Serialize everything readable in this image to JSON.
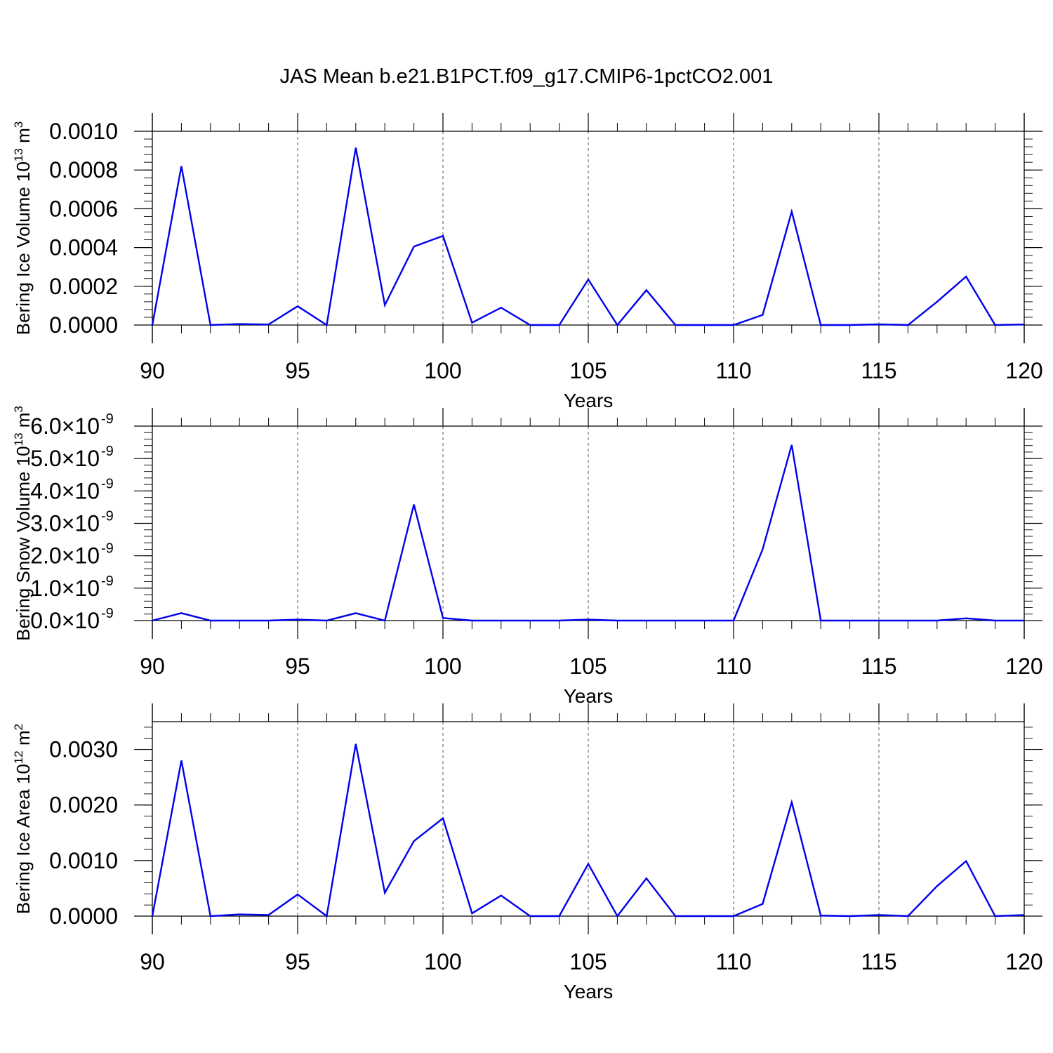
{
  "title": "JAS Mean b.e21.B1PCT.f09_g17.CMIP6-1pctCO2.001",
  "colors": {
    "line": "#0000ee",
    "axis": "#000000",
    "grid": "#555555"
  },
  "chart_data": [
    {
      "type": "line",
      "ylabel": "Bering Ice Volume 10",
      "ylabel_sup": "13",
      "ylabel_unit": " m",
      "ylabel_unit_sup": "3",
      "xlabel": "Years",
      "xlim": [
        90,
        120
      ],
      "ylim": [
        0,
        0.001
      ],
      "xticks": [
        90,
        95,
        100,
        105,
        110,
        115,
        120
      ],
      "yticks": [
        0,
        0.0002,
        0.0004,
        0.0006,
        0.0008,
        0.001
      ],
      "ytick_labels": [
        "0.0000",
        "0.0002",
        "0.0004",
        "0.0006",
        "0.0008",
        "0.0010"
      ],
      "grid": "vertical dashed at major x ticks",
      "x": [
        90,
        91,
        92,
        93,
        94,
        95,
        96,
        97,
        98,
        99,
        100,
        101,
        102,
        103,
        104,
        105,
        106,
        107,
        108,
        109,
        110,
        111,
        112,
        113,
        114,
        115,
        116,
        117,
        118,
        119,
        120
      ],
      "values": [
        0.0,
        0.00082,
        0.0,
        5e-06,
        3e-06,
        9.7e-05,
        0.0,
        0.000915,
        0.000103,
        0.000405,
        0.00046,
        1.2e-05,
        9e-05,
        0.0,
        0.0,
        0.000235,
        0.0,
        0.00018,
        0.0,
        0.0,
        0.0,
        5.2e-05,
        0.000585,
        0.0,
        0.0,
        4e-06,
        0.0,
        0.00012,
        0.00025,
        0.0,
        3e-06
      ]
    },
    {
      "type": "line",
      "ylabel": "Bering Snow Volume 10",
      "ylabel_sup": "13",
      "ylabel_unit": " m",
      "ylabel_unit_sup": "3",
      "xlabel": "Years",
      "xlim": [
        90,
        120
      ],
      "ylim": [
        0,
        6e-09
      ],
      "xticks": [
        90,
        95,
        100,
        105,
        110,
        115,
        120
      ],
      "yticks": [
        0,
        1e-09,
        2e-09,
        3e-09,
        4e-09,
        5e-09,
        6e-09
      ],
      "ytick_labels": [
        "0.0×10",
        "1.0×10",
        "2.0×10",
        "3.0×10",
        "4.0×10",
        "5.0×10",
        "6.0×10"
      ],
      "ytick_exponent": "-9",
      "grid": "vertical dashed at major x ticks",
      "x": [
        90,
        91,
        92,
        93,
        94,
        95,
        96,
        97,
        98,
        99,
        100,
        101,
        102,
        103,
        104,
        105,
        106,
        107,
        108,
        109,
        110,
        111,
        112,
        113,
        114,
        115,
        116,
        117,
        118,
        119,
        120
      ],
      "values": [
        0.0,
        2.3e-10,
        0.0,
        0.0,
        0.0,
        3e-11,
        0.0,
        2.3e-10,
        0.0,
        3.58e-09,
        8e-11,
        0.0,
        0.0,
        0.0,
        0.0,
        3e-11,
        0.0,
        0.0,
        0.0,
        0.0,
        0.0,
        2.2e-09,
        5.42e-09,
        0.0,
        0.0,
        0.0,
        0.0,
        0.0,
        7e-11,
        0.0,
        0.0
      ]
    },
    {
      "type": "line",
      "ylabel": "Bering Ice Area 10",
      "ylabel_sup": "12",
      "ylabel_unit": " m",
      "ylabel_unit_sup": "2",
      "xlabel": "Years",
      "xlim": [
        90,
        120
      ],
      "ylim": [
        0,
        0.0035
      ],
      "xticks": [
        90,
        95,
        100,
        105,
        110,
        115,
        120
      ],
      "yticks": [
        0,
        0.001,
        0.002,
        0.003
      ],
      "ytick_labels": [
        "0.0000",
        "0.0010",
        "0.0020",
        "0.0030"
      ],
      "grid": "vertical dashed at major x ticks",
      "x": [
        90,
        91,
        92,
        93,
        94,
        95,
        96,
        97,
        98,
        99,
        100,
        101,
        102,
        103,
        104,
        105,
        106,
        107,
        108,
        109,
        110,
        111,
        112,
        113,
        114,
        115,
        116,
        117,
        118,
        119,
        120
      ],
      "values": [
        0.0,
        0.0028,
        0.0,
        3e-05,
        2e-05,
        0.00039,
        0.0,
        0.0031,
        0.00042,
        0.00135,
        0.00176,
        5e-05,
        0.00037,
        0.0,
        0.0,
        0.00094,
        0.0,
        0.00068,
        0.0,
        0.0,
        0.0,
        0.00022,
        0.00205,
        1e-05,
        0.0,
        2e-05,
        0.0,
        0.00054,
        0.00099,
        0.0,
        2e-05
      ]
    }
  ]
}
